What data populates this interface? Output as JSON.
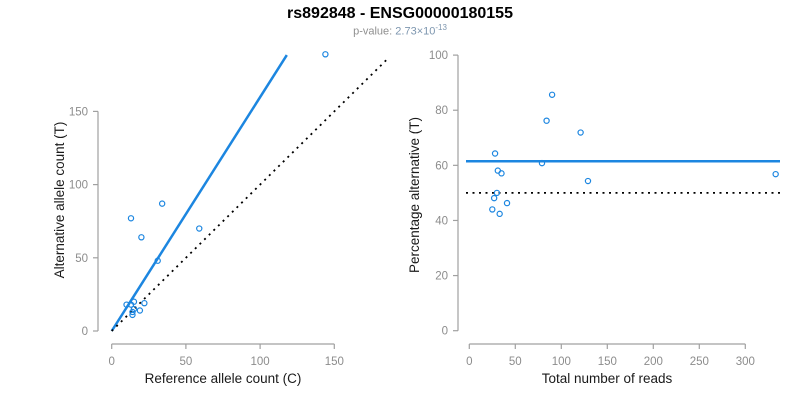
{
  "header": {
    "title": "rs892848 - ENSG00000180155",
    "pvalue_prefix": "p-value: ",
    "pvalue_mantissa": "2.73×10",
    "pvalue_exponent": "-13"
  },
  "colors": {
    "accent_blue": "#1c86e0",
    "dotted_black": "#000000",
    "axis_gray": "#a0a0a0",
    "tick_label_gray": "#8c8c8c"
  },
  "chart_data": [
    {
      "type": "scatter",
      "panel": "left",
      "xlabel": "Reference allele count (C)",
      "ylabel": "Alternative allele count (T)",
      "xticks": [
        0,
        50,
        100,
        150
      ],
      "yticks": [
        0,
        50,
        100,
        150
      ],
      "xlim": [
        0,
        187
      ],
      "ylim": [
        0,
        189
      ],
      "grid": false,
      "points": [
        [
          10,
          18
        ],
        [
          13,
          18
        ],
        [
          15,
          20
        ],
        [
          15,
          15
        ],
        [
          19,
          14
        ],
        [
          14,
          13
        ],
        [
          14,
          11
        ],
        [
          22,
          19
        ],
        [
          31,
          48
        ],
        [
          20,
          64
        ],
        [
          13,
          77
        ],
        [
          34,
          87
        ],
        [
          59,
          70
        ],
        [
          144,
          189
        ]
      ],
      "lines": [
        {
          "name": "fit-line",
          "style": "solid",
          "color": "blue",
          "x1": 0,
          "y1": 0,
          "x2": 118,
          "y2": 188.5
        },
        {
          "name": "identity-line",
          "style": "dotted",
          "color": "black",
          "x1": 0,
          "y1": 0,
          "x2": 187,
          "y2": 187
        }
      ]
    },
    {
      "type": "scatter",
      "panel": "right",
      "xlabel": "Total number of reads",
      "ylabel": "Percentage alternative (T)",
      "xticks": [
        0,
        50,
        100,
        150,
        200,
        250,
        300
      ],
      "yticks": [
        0,
        20,
        40,
        60,
        80,
        100
      ],
      "xlim": [
        0,
        340
      ],
      "ylim": [
        0,
        100
      ],
      "grid": false,
      "points": [
        [
          28,
          64.3
        ],
        [
          31,
          58.1
        ],
        [
          35,
          57.1
        ],
        [
          30,
          50.0
        ],
        [
          33,
          42.4
        ],
        [
          27,
          48.1
        ],
        [
          25,
          44.0
        ],
        [
          41,
          46.3
        ],
        [
          79,
          60.8
        ],
        [
          84,
          76.2
        ],
        [
          90,
          85.6
        ],
        [
          121,
          71.9
        ],
        [
          129,
          54.3
        ],
        [
          333,
          56.8
        ]
      ],
      "lines": [
        {
          "name": "mean-percentage-line",
          "style": "solid",
          "color": "blue",
          "y": 61.5
        },
        {
          "name": "fifty-percent-line",
          "style": "dotted",
          "color": "black",
          "y": 50
        }
      ]
    }
  ]
}
